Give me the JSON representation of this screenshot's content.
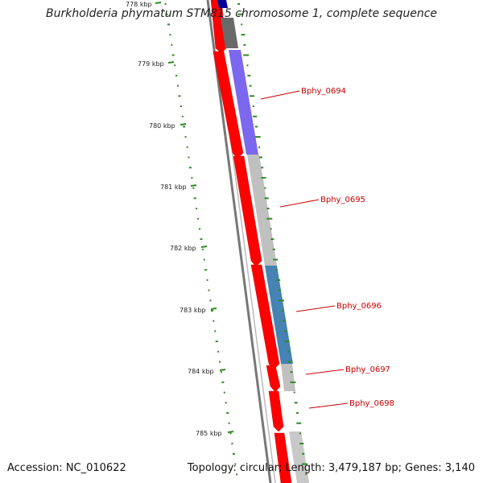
{
  "title": "Burkholderia phymatum STM815 chromosome 1, complete sequence",
  "footer": {
    "accession": "Accession: NC_010622",
    "topology": "Topology: circular; Length: 3,479,187 bp; Genes: 3,140"
  },
  "colors": {
    "gc_dots": "#2e8b22",
    "forward_strand": "#ff0000",
    "backbone": "#707070",
    "label": "#cc0000",
    "blue_cds": "#000099",
    "purple_cds": "#7b68ee",
    "gray_cds": "#c0c0c0",
    "steel_cds": "#4682b4",
    "dark_cds": "#696969"
  },
  "ticks": [
    {
      "label": "778 kbp"
    },
    {
      "label": "779 kbp"
    },
    {
      "label": "780 kbp"
    },
    {
      "label": "781 kbp"
    },
    {
      "label": "782 kbp"
    },
    {
      "label": "783 kbp"
    },
    {
      "label": "784 kbp"
    },
    {
      "label": "785 kbp"
    }
  ],
  "genes": [
    {
      "label": "Bphy_0694"
    },
    {
      "label": "Bphy_0695"
    },
    {
      "label": "Bphy_0696"
    },
    {
      "label": "Bphy_0697"
    },
    {
      "label": "Bphy_0698"
    }
  ]
}
